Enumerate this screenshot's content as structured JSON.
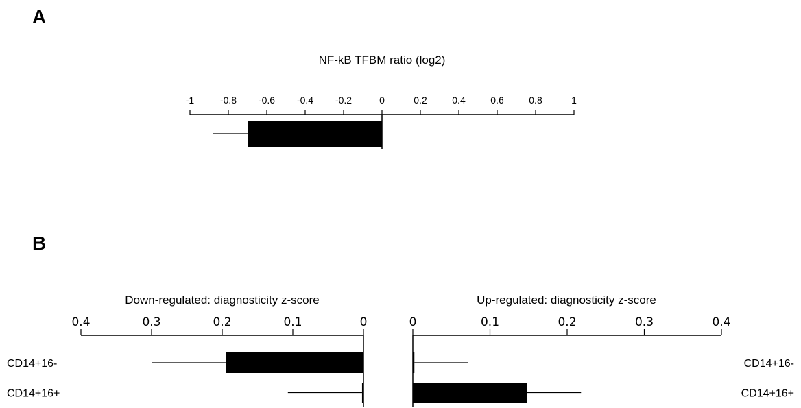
{
  "chart_data": [
    {
      "type": "bar",
      "panel": "A",
      "title": "NF-kB TFBM ratio (log2)",
      "xlim": [
        -1,
        1
      ],
      "ticks": [
        -1,
        -0.8,
        -0.6,
        -0.4,
        -0.2,
        0,
        0.2,
        0.4,
        0.6,
        0.8,
        1
      ],
      "tick_labels": [
        "-1",
        "-0.8",
        "-0.6",
        "-0.4",
        "-0.2",
        "0",
        "0.2",
        "0.4",
        "0.6",
        "0.8",
        "1"
      ],
      "values": [
        -0.7
      ],
      "error": [
        0.18
      ],
      "orientation": "horizontal",
      "bar_color": "#000000"
    },
    {
      "type": "bar",
      "panel": "B",
      "title": "Down-regulated: diagnosticity z-score",
      "direction": "reversed",
      "xlim": [
        0,
        0.4
      ],
      "ticks": [
        0.4,
        0.3,
        0.2,
        0.1,
        0
      ],
      "tick_labels": [
        "0.4",
        "0.3",
        "0.2",
        "0.1",
        "0"
      ],
      "categories": [
        "CD14+16-",
        "CD14+16+"
      ],
      "values": [
        0.195,
        0.002
      ],
      "error": [
        0.105,
        0.105
      ],
      "orientation": "horizontal",
      "bar_color": "#000000"
    },
    {
      "type": "bar",
      "panel": "B",
      "title": "Up-regulated: diagnosticity z-score",
      "xlim": [
        0,
        0.4
      ],
      "ticks": [
        0,
        0.1,
        0.2,
        0.3,
        0.4
      ],
      "tick_labels": [
        "0",
        "0.1",
        "0.2",
        "0.3",
        "0.4"
      ],
      "categories": [
        "CD14+16-",
        "CD14+16+"
      ],
      "values": [
        0.002,
        0.148
      ],
      "error": [
        0.07,
        0.07
      ],
      "orientation": "horizontal",
      "bar_color": "#000000"
    }
  ],
  "panels": {
    "a_label": "A",
    "b_label": "B"
  }
}
